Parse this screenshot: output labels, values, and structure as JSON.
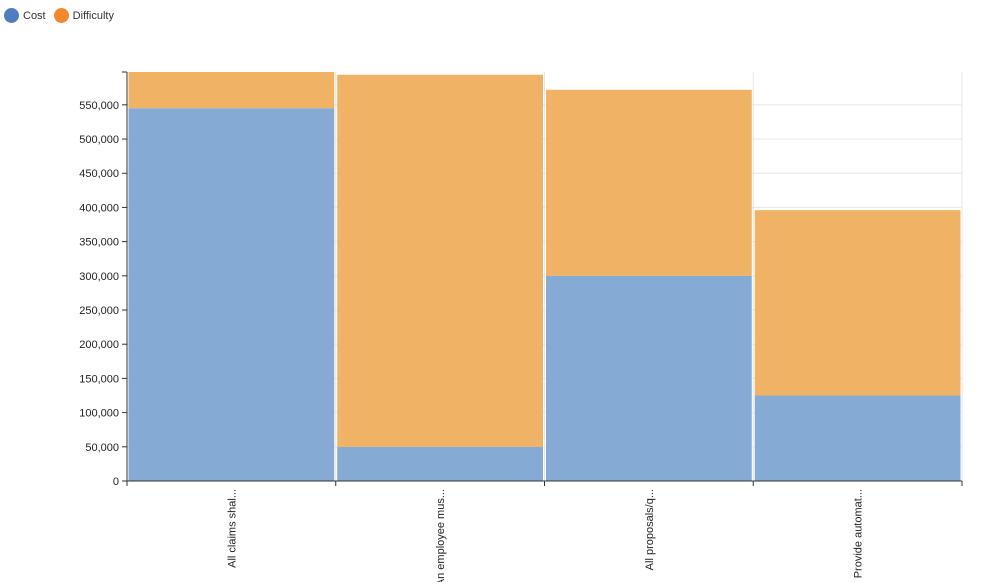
{
  "chart_data": {
    "type": "bar",
    "stacked": true,
    "title": "",
    "xlabel": "",
    "ylabel": "",
    "categories": [
      "All claims shal...",
      "An employee mus...",
      "All proposals/q...",
      "Provide automat..."
    ],
    "series": [
      {
        "name": "Cost",
        "color": "#4e7ec0",
        "fill": "#85aad4",
        "values": [
          545000,
          50000,
          300000,
          125000
        ]
      },
      {
        "name": "Difficulty",
        "color": "#f0882d",
        "fill": "#f0b264",
        "values": [
          53000,
          544000,
          272000,
          271000
        ]
      }
    ],
    "ylim": [
      0,
      598000
    ],
    "yticks": [
      0,
      50000,
      100000,
      150000,
      200000,
      250000,
      300000,
      350000,
      400000,
      450000,
      500000,
      550000
    ],
    "ytick_labels": [
      "0",
      "50,000",
      "100,000",
      "150,000",
      "200,000",
      "250,000",
      "300,000",
      "350,000",
      "400,000",
      "450,000",
      "500,000",
      "550,000"
    ],
    "grid": true,
    "legend_position": "top-left"
  }
}
